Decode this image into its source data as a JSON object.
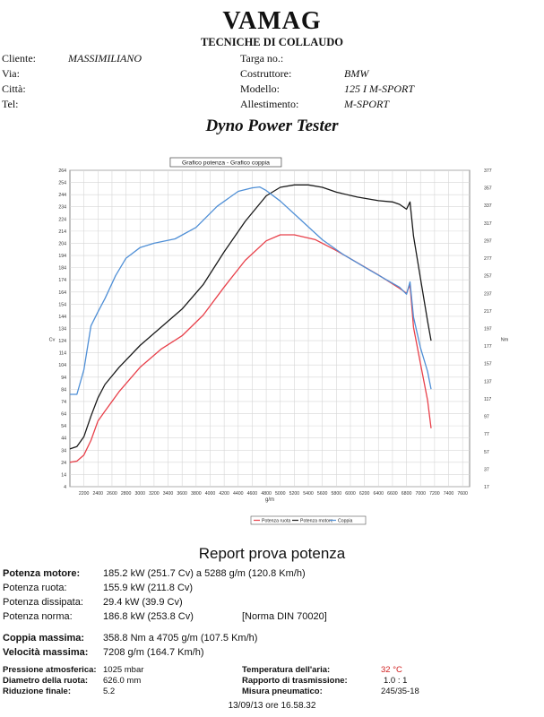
{
  "header": {
    "brand": "VAMAG",
    "subtitle": "TECNICHE DI COLLAUDO",
    "client_info": [
      {
        "label": "Cliente:",
        "value": "MASSIMILIANO"
      },
      {
        "label": "Via:",
        "value": ""
      },
      {
        "label": "Città:",
        "value": ""
      },
      {
        "label": "Tel:",
        "value": ""
      }
    ],
    "vehicle_info": [
      {
        "label": "Targa no.:",
        "value": ""
      },
      {
        "label": "Costruttore:",
        "value": "BMW"
      },
      {
        "label": "Modello:",
        "value": "125 I M-SPORT"
      },
      {
        "label": "Allestimento:",
        "value": "M-SPORT"
      }
    ]
  },
  "dyno_title": "Dyno Power Tester",
  "chart_data": {
    "type": "line",
    "title": "Grafico potenza - Grafico coppia",
    "xlabel": "g/m",
    "ylabel_left": "Cv",
    "ylabel_right": "Nm",
    "xlim": [
      2000,
      7700
    ],
    "ylim_left": [
      4,
      264
    ],
    "ylim_right": [
      17,
      377
    ],
    "x_ticks": [
      "2200",
      "2400",
      "2600",
      "2800",
      "3000",
      "3200",
      "3400",
      "3600",
      "3800",
      "4000",
      "4200",
      "4400",
      "4600",
      "4800",
      "5000",
      "5200",
      "5400",
      "5600",
      "5800",
      "6000",
      "6200",
      "6400",
      "6600",
      "6800",
      "7000",
      "7200",
      "7400",
      "7600"
    ],
    "y_left_ticks": [
      "264",
      "254",
      "244",
      "234",
      "224",
      "214",
      "204",
      "194",
      "184",
      "174",
      "164",
      "154",
      "144",
      "134",
      "124",
      "114",
      "104",
      "94",
      "84",
      "74",
      "64",
      "54",
      "44",
      "34",
      "24",
      "14",
      "4"
    ],
    "y_right_ticks": [
      "377",
      "357",
      "337",
      "317",
      "297",
      "277",
      "257",
      "237",
      "217",
      "197",
      "177",
      "157",
      "137",
      "117",
      "97",
      "77",
      "57",
      "37",
      "17"
    ],
    "legend_position": "bottom",
    "series": [
      {
        "name": "Potenza ruota",
        "axis": "left",
        "color": "#e8404a",
        "x": [
          2000,
          2100,
          2200,
          2300,
          2400,
          2500,
          2700,
          3000,
          3300,
          3600,
          3900,
          4200,
          4500,
          4800,
          5000,
          5200,
          5500,
          5800,
          6100,
          6400,
          6700,
          6800,
          6850,
          6900,
          7000,
          7100,
          7150
        ],
        "y": [
          24,
          25,
          30,
          42,
          58,
          66,
          82,
          102,
          117,
          128,
          145,
          168,
          190,
          206,
          211,
          211,
          207,
          198,
          188,
          178,
          167,
          163,
          170,
          135,
          105,
          75,
          52
        ]
      },
      {
        "name": "Potenza motore",
        "axis": "left",
        "color": "#1a1a1a",
        "x": [
          2000,
          2100,
          2200,
          2300,
          2400,
          2500,
          2700,
          3000,
          3300,
          3600,
          3900,
          4200,
          4500,
          4800,
          5000,
          5200,
          5400,
          5600,
          5800,
          6100,
          6400,
          6600,
          6700,
          6800,
          6850,
          6900,
          7000,
          7100,
          7150
        ],
        "y": [
          35,
          37,
          45,
          62,
          77,
          88,
          102,
          120,
          135,
          150,
          170,
          197,
          222,
          243,
          250,
          252,
          252,
          250,
          246,
          242,
          239,
          238,
          236,
          232,
          238,
          210,
          175,
          140,
          124
        ]
      },
      {
        "name": "Coppia",
        "axis": "right",
        "color": "#4f8fd6",
        "x": [
          2000,
          2100,
          2200,
          2300,
          2400,
          2500,
          2650,
          2800,
          3000,
          3200,
          3500,
          3800,
          4100,
          4400,
          4600,
          4705,
          4800,
          5000,
          5300,
          5600,
          5900,
          6200,
          6500,
          6700,
          6800,
          6850,
          6900,
          7000,
          7100,
          7150
        ],
        "y": [
          122,
          122,
          150,
          200,
          216,
          231,
          257,
          277,
          289,
          294,
          299,
          312,
          336,
          353,
          357,
          358,
          354,
          342,
          320,
          298,
          281,
          267,
          253,
          244,
          236,
          250,
          210,
          175,
          148,
          128
        ]
      }
    ]
  },
  "report": {
    "title": "Report prova potenza",
    "rows": [
      {
        "label": "Potenza motore:",
        "value": "185.2 kW (251.7 Cv) a 5288 g/m (120.8 Km/h)",
        "note": ""
      },
      {
        "label": "Potenza ruota:",
        "value": "155.9 kW (211.8 Cv)",
        "note": ""
      },
      {
        "label": "Potenza dissipata:",
        "value": "29.4 kW (39.9 Cv)",
        "note": ""
      },
      {
        "label": "Potenza norma:",
        "value": "186.8 kW (253.8 Cv)",
        "note": "[Norma DIN 70020]"
      }
    ],
    "rows2": [
      {
        "label": "Coppia massima:",
        "value": "358.8 Nm a 4705 g/m (107.5 Km/h)"
      },
      {
        "label": "Velocità massima:",
        "value": "7208 g/m (164.7 Km/h)"
      }
    ],
    "conditions_left": [
      {
        "label": "Pressione atmosferica:",
        "value": "1025 mbar"
      },
      {
        "label": "Diametro della ruota:",
        "value": "626.0 mm"
      },
      {
        "label": "Riduzione finale:",
        "value": "5.2"
      }
    ],
    "conditions_right": [
      {
        "label": "Temperatura dell'aria:",
        "value": "32 °C"
      },
      {
        "label": "Rapporto di trasmissione:",
        "value": "1.0 : 1"
      },
      {
        "label": "Misura pneumatico:",
        "value": "245/35-18"
      }
    ]
  },
  "footer": {
    "timestamp": "13/09/13 ore 16.58.32"
  }
}
